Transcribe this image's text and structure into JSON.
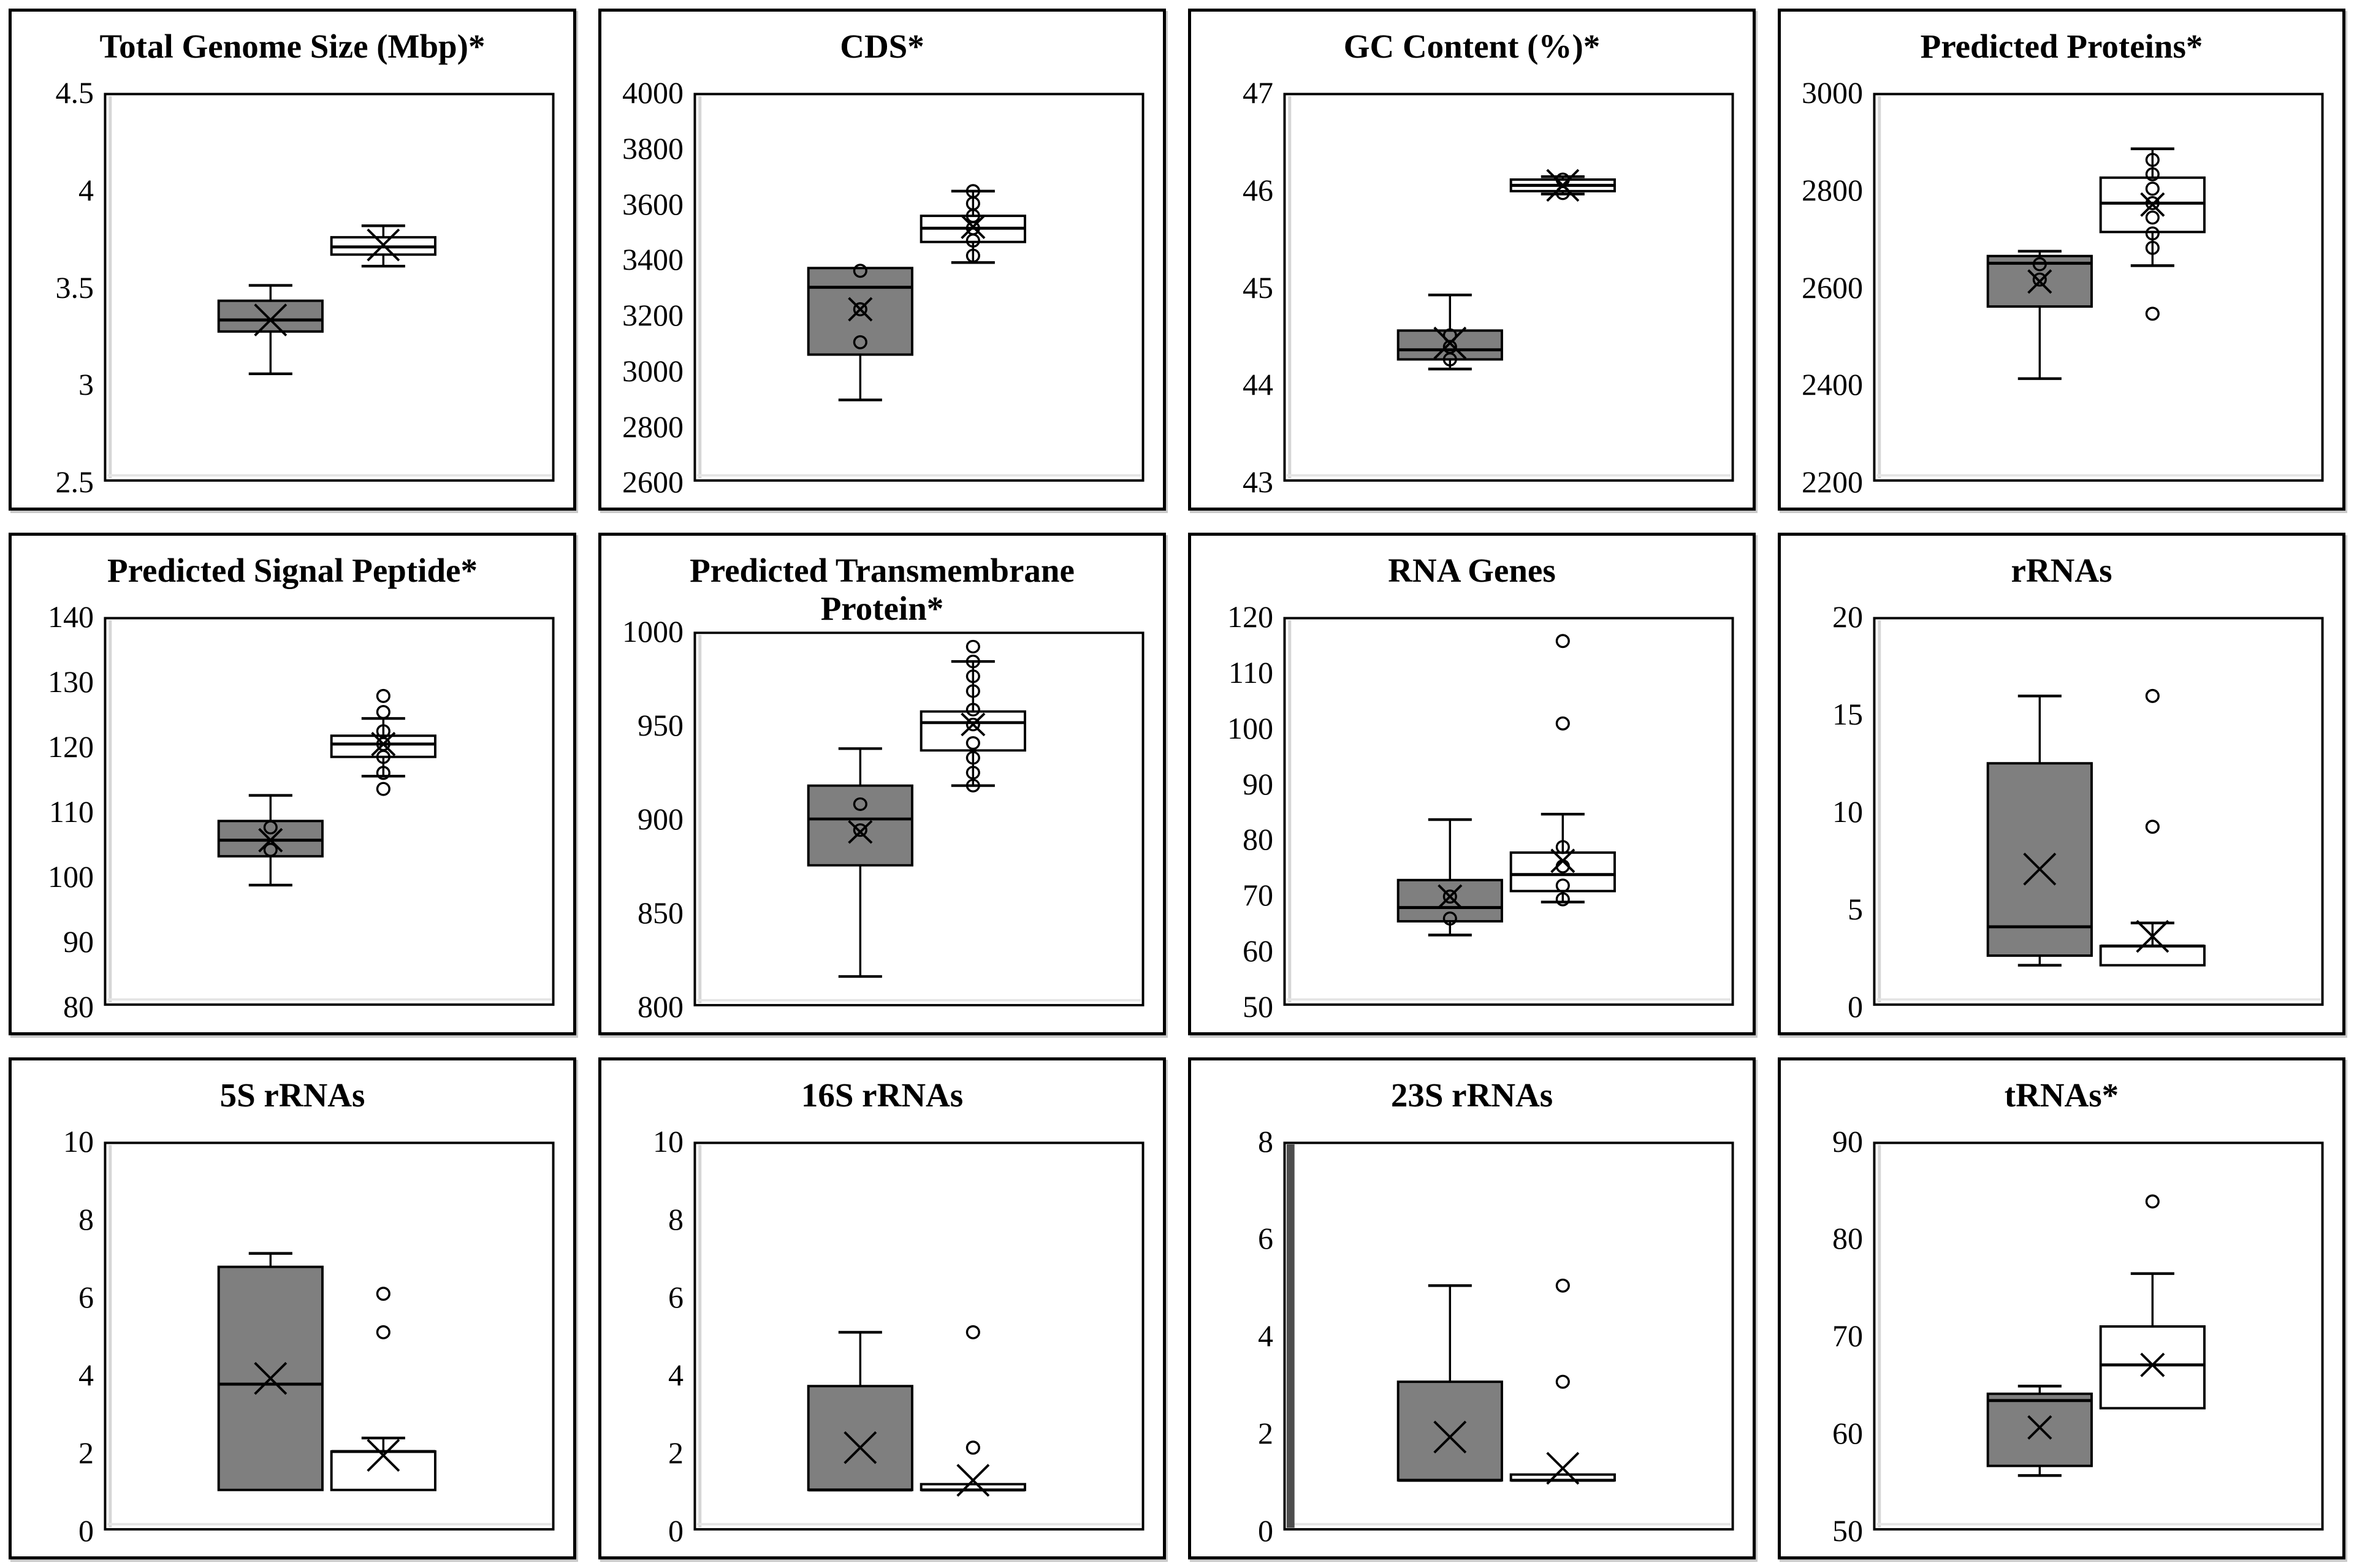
{
  "figure": {
    "background": "#ffffff",
    "panel_border_color": "#000000",
    "series_fills": [
      "#7f7f7f",
      "#ffffff"
    ],
    "stroke_color": "#000000"
  },
  "chart_data": [
    {
      "type": "box",
      "title": "Total Genome Size (Mbp)*",
      "ylim": [
        2.5,
        4.5
      ],
      "yticks": [
        "4.5",
        "4",
        "3.5",
        "3",
        "2.5"
      ],
      "grid": false,
      "boxes": [
        {
          "fill": "#7f7f7f",
          "whisker_low": 3.05,
          "q1": 3.27,
          "median": 3.33,
          "q3": 3.43,
          "whisker_high": 3.51,
          "mean": 3.33,
          "points": []
        },
        {
          "fill": "#ffffff",
          "whisker_low": 3.61,
          "q1": 3.67,
          "median": 3.71,
          "q3": 3.76,
          "whisker_high": 3.82,
          "mean": 3.72,
          "points": []
        }
      ]
    },
    {
      "type": "box",
      "title": "CDS*",
      "ylim": [
        2600,
        4000
      ],
      "yticks": [
        "4000",
        "3800",
        "3600",
        "3400",
        "3200",
        "3000",
        "2800",
        "2600"
      ],
      "grid": false,
      "boxes": [
        {
          "fill": "#7f7f7f",
          "whisker_low": 2890,
          "q1": 3055,
          "median": 3300,
          "q3": 3370,
          "whisker_high": 3370,
          "mean": 3220,
          "points": [
            3360,
            3220,
            3100
          ]
        },
        {
          "fill": "#ffffff",
          "whisker_low": 3390,
          "q1": 3465,
          "median": 3515,
          "q3": 3560,
          "whisker_high": 3650,
          "mean": 3520,
          "points": [
            3650,
            3605,
            3560,
            3515,
            3470,
            3415
          ]
        }
      ]
    },
    {
      "type": "box",
      "title": "GC Content (%)*",
      "ylim": [
        43,
        47
      ],
      "yticks": [
        "47",
        "46",
        "45",
        "44",
        "43"
      ],
      "grid": false,
      "boxes": [
        {
          "fill": "#7f7f7f",
          "whisker_low": 44.15,
          "q1": 44.25,
          "median": 44.35,
          "q3": 44.55,
          "whisker_high": 44.92,
          "mean": 44.42,
          "points": [
            44.5,
            44.38,
            44.25
          ]
        },
        {
          "fill": "#ffffff",
          "whisker_low": 45.97,
          "q1": 46.0,
          "median": 46.06,
          "q3": 46.12,
          "whisker_high": 46.15,
          "mean": 46.06,
          "points": [
            46.12,
            45.98
          ]
        }
      ]
    },
    {
      "type": "box",
      "title": "Predicted Proteins*",
      "ylim": [
        2200,
        3000
      ],
      "yticks": [
        "3000",
        "2800",
        "2600",
        "2400",
        "2200"
      ],
      "grid": false,
      "boxes": [
        {
          "fill": "#7f7f7f",
          "whisker_low": 2410,
          "q1": 2560,
          "median": 2650,
          "q3": 2665,
          "whisker_high": 2675,
          "mean": 2612,
          "points": [
            2648,
            2616
          ]
        },
        {
          "fill": "#ffffff",
          "whisker_low": 2645,
          "q1": 2715,
          "median": 2775,
          "q3": 2828,
          "whisker_high": 2888,
          "mean": 2772,
          "points": [
            2865,
            2835,
            2805,
            2775,
            2745,
            2712,
            2682,
            2545
          ]
        }
      ]
    },
    {
      "type": "box",
      "title": "Predicted Signal Peptide*",
      "ylim": [
        80,
        140
      ],
      "yticks": [
        "140",
        "130",
        "120",
        "110",
        "100",
        "90",
        "80"
      ],
      "grid": false,
      "boxes": [
        {
          "fill": "#7f7f7f",
          "whisker_low": 98.5,
          "q1": 103,
          "median": 105.5,
          "q3": 108.5,
          "whisker_high": 112.5,
          "mean": 105.5,
          "points": [
            107.5,
            104
          ]
        },
        {
          "fill": "#ffffff",
          "whisker_low": 115.5,
          "q1": 118.5,
          "median": 120.5,
          "q3": 121.8,
          "whisker_high": 124.5,
          "mean": 120.5,
          "points": [
            128,
            125.5,
            122.5,
            120.5,
            118.5,
            116,
            113.5
          ]
        }
      ]
    },
    {
      "type": "box",
      "title": "Predicted Transmembrane\nProtein*",
      "ylim": [
        800,
        1000
      ],
      "yticks": [
        "1000",
        "950",
        "900",
        "850",
        "800"
      ],
      "grid": false,
      "boxes": [
        {
          "fill": "#7f7f7f",
          "whisker_low": 815,
          "q1": 875,
          "median": 900,
          "q3": 918,
          "whisker_high": 938,
          "mean": 893,
          "points": [
            908,
            894
          ]
        },
        {
          "fill": "#ffffff",
          "whisker_low": 918,
          "q1": 937,
          "median": 952,
          "q3": 958,
          "whisker_high": 985,
          "mean": 951,
          "points": [
            993,
            985,
            977,
            969,
            959,
            951,
            941,
            933,
            925,
            918
          ]
        }
      ]
    },
    {
      "type": "box",
      "title": "RNA Genes",
      "ylim": [
        50,
        120
      ],
      "yticks": [
        "120",
        "110",
        "100",
        "90",
        "80",
        "70",
        "60",
        "50"
      ],
      "grid": false,
      "boxes": [
        {
          "fill": "#7f7f7f",
          "whisker_low": 62.5,
          "q1": 65,
          "median": 67.5,
          "q3": 72.5,
          "whisker_high": 83.5,
          "mean": 69.5,
          "points": [
            69.5,
            65.5
          ]
        },
        {
          "fill": "#ffffff",
          "whisker_low": 68.5,
          "q1": 70.5,
          "median": 73.5,
          "q3": 77.5,
          "whisker_high": 84.5,
          "mean": 76,
          "points": [
            116,
            101,
            78.5,
            75,
            71.5,
            69
          ]
        }
      ]
    },
    {
      "type": "box",
      "title": "rRNAs",
      "ylim": [
        0,
        20
      ],
      "yticks": [
        "20",
        "15",
        "10",
        "5",
        "0"
      ],
      "grid": false,
      "boxes": [
        {
          "fill": "#7f7f7f",
          "whisker_low": 2,
          "q1": 2.5,
          "median": 4,
          "q3": 12.5,
          "whisker_high": 16,
          "mean": 7,
          "points": []
        },
        {
          "fill": "#ffffff",
          "whisker_low": 2,
          "q1": 2,
          "median": 3,
          "q3": 3,
          "whisker_high": 4.2,
          "mean": 3.5,
          "points": [
            16,
            9.2
          ]
        }
      ]
    },
    {
      "type": "box",
      "title": "5S rRNAs",
      "ylim": [
        0,
        10
      ],
      "yticks": [
        "10",
        "8",
        "6",
        "4",
        "2",
        "0"
      ],
      "grid": false,
      "boxes": [
        {
          "fill": "#7f7f7f",
          "whisker_low": 1,
          "q1": 1,
          "median": 3.75,
          "q3": 6.8,
          "whisker_high": 7.15,
          "mean": 3.9,
          "points": []
        },
        {
          "fill": "#ffffff",
          "whisker_low": 1,
          "q1": 1,
          "median": 2,
          "q3": 2,
          "whisker_high": 2.35,
          "mean": 1.9,
          "points": [
            6.1,
            5.1
          ]
        }
      ]
    },
    {
      "type": "box",
      "title": "16S rRNAs",
      "ylim": [
        0,
        10
      ],
      "yticks": [
        "10",
        "8",
        "6",
        "4",
        "2",
        "0"
      ],
      "grid": false,
      "boxes": [
        {
          "fill": "#7f7f7f",
          "whisker_low": 1,
          "q1": 1,
          "median": 1,
          "q3": 3.7,
          "whisker_high": 5.1,
          "mean": 2.1,
          "points": []
        },
        {
          "fill": "#ffffff",
          "whisker_low": 1,
          "q1": 1,
          "median": 1,
          "q3": 1.15,
          "whisker_high": 1.15,
          "mean": 1.25,
          "points": [
            5.1,
            2.1
          ]
        }
      ]
    },
    {
      "type": "box",
      "title": "23S rRNAs",
      "ylim": [
        0,
        8
      ],
      "yticks": [
        "8",
        "6",
        "4",
        "2",
        "0"
      ],
      "grid": false,
      "left_bar": true,
      "boxes": [
        {
          "fill": "#7f7f7f",
          "whisker_low": 1,
          "q1": 1,
          "median": 1,
          "q3": 3.05,
          "whisker_high": 5.05,
          "mean": 1.9,
          "points": []
        },
        {
          "fill": "#ffffff",
          "whisker_low": 1,
          "q1": 1,
          "median": 1,
          "q3": 1.12,
          "whisker_high": 1.12,
          "mean": 1.25,
          "points": [
            5.05,
            3.05
          ]
        }
      ]
    },
    {
      "type": "box",
      "title": "tRNAs*",
      "ylim": [
        50,
        90
      ],
      "yticks": [
        "90",
        "80",
        "70",
        "60",
        "50"
      ],
      "grid": false,
      "boxes": [
        {
          "fill": "#7f7f7f",
          "whisker_low": 55.5,
          "q1": 56.5,
          "median": 63.3,
          "q3": 64,
          "whisker_high": 64.8,
          "mean": 60.5,
          "points": []
        },
        {
          "fill": "#ffffff",
          "whisker_low": 62.5,
          "q1": 62.5,
          "median": 67,
          "q3": 71,
          "whisker_high": 76.5,
          "mean": 67,
          "points": [
            84
          ]
        }
      ]
    }
  ]
}
